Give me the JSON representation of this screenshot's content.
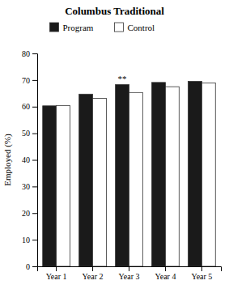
{
  "chart_data": {
    "type": "bar",
    "title": "Columbus Traditional",
    "ylabel": "Employed (%)",
    "categories": [
      "Year 1",
      "Year 2",
      "Year 3",
      "Year 4",
      "Year 5"
    ],
    "series": [
      {
        "name": "Program",
        "color": "#1a1a1a",
        "values": [
          60.3,
          64.7,
          68.3,
          69.1,
          69.5
        ]
      },
      {
        "name": "Control",
        "color": "#ffffff",
        "values": [
          60.4,
          63.1,
          65.3,
          67.5,
          68.9
        ]
      }
    ],
    "annotations": [
      {
        "text": "**",
        "category": "Year 3",
        "series": "Program"
      }
    ],
    "ylim": [
      0,
      80
    ],
    "yticks": [
      0,
      10,
      20,
      30,
      40,
      50,
      60,
      70,
      80
    ],
    "grid": false,
    "legend": "top"
  }
}
